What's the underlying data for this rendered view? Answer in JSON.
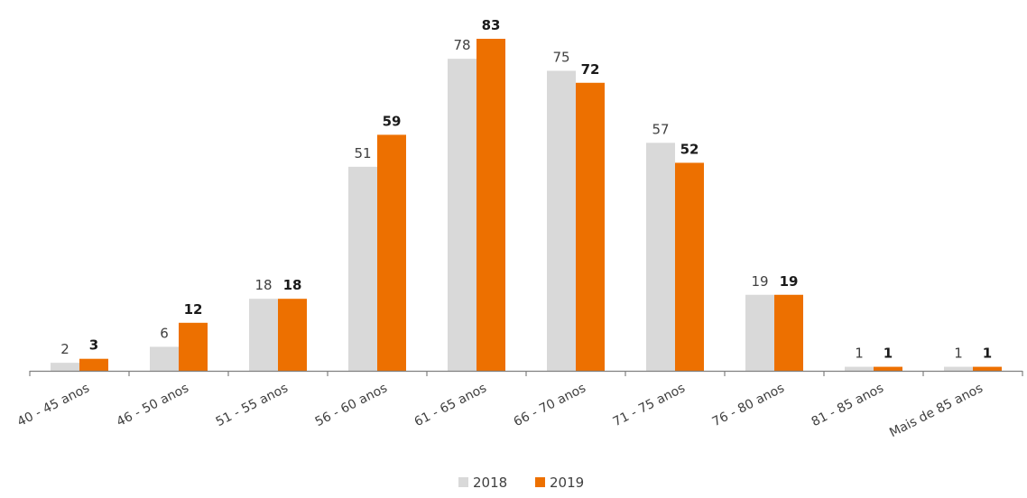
{
  "chart_data": {
    "type": "bar",
    "categories": [
      "40 - 45 anos",
      "46 - 50 anos",
      "51 - 55 anos",
      "56 - 60 anos",
      "61 - 65 anos",
      "66 - 70 anos",
      "71 - 75 anos",
      "76 - 80 anos",
      "81 - 85 anos",
      "Mais de 85 anos"
    ],
    "series": [
      {
        "name": "2018",
        "values": [
          2,
          6,
          18,
          51,
          78,
          75,
          57,
          19,
          1,
          1
        ],
        "color": "#d9d9d9"
      },
      {
        "name": "2019",
        "values": [
          3,
          12,
          18,
          59,
          83,
          72,
          52,
          19,
          1,
          1
        ],
        "color": "#ed7000"
      }
    ],
    "ylim": [
      0,
      83
    ],
    "grid": false,
    "legend_position": "bottom-center",
    "data_labels": true
  }
}
